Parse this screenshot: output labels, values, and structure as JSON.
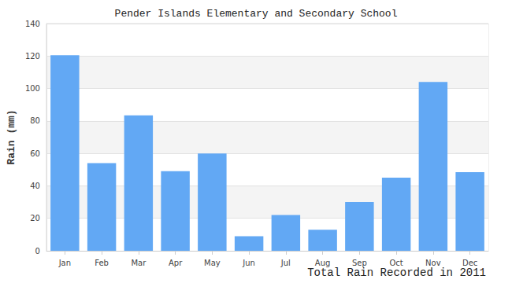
{
  "chart_data": {
    "type": "bar",
    "title": "Pender Islands Elementary and Secondary School",
    "x_label": "Total Rain Recorded in 2011",
    "y_label": "Rain (mm)",
    "categories": [
      "Jan",
      "Feb",
      "Mar",
      "Apr",
      "May",
      "Jun",
      "Jul",
      "Aug",
      "Sep",
      "Oct",
      "Nov",
      "Dec"
    ],
    "values": [
      120.5,
      54,
      83.5,
      49,
      60,
      9,
      22,
      13,
      30,
      45,
      104,
      48.5
    ],
    "color": "#62a8f4",
    "ylim": [
      0,
      140
    ],
    "yticks": [
      0,
      20,
      40,
      60,
      80,
      100,
      120,
      140
    ],
    "grid": true
  }
}
